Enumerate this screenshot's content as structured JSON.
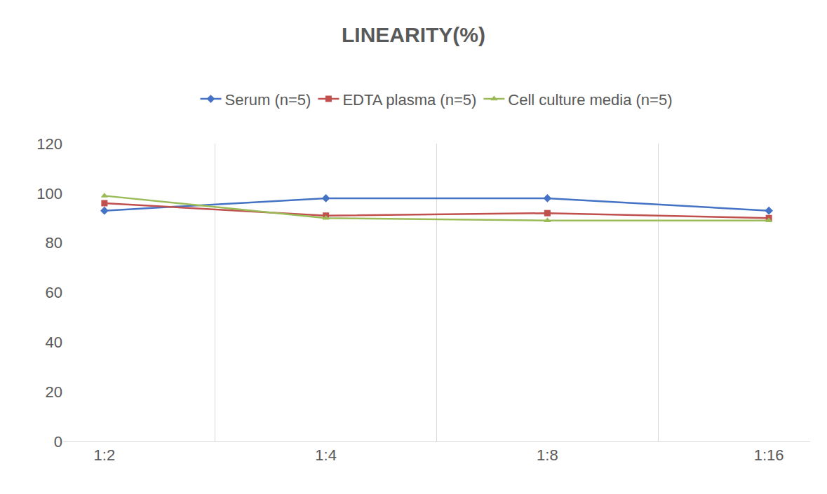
{
  "chart_data": {
    "type": "line",
    "title": "LINEARITY(%)",
    "categories": [
      "1:2",
      "1:4",
      "1:8",
      "1:16"
    ],
    "series": [
      {
        "name": "Serum (n=5)",
        "color": "#4472c4",
        "marker": "diamond",
        "values": [
          93,
          98,
          98,
          93
        ]
      },
      {
        "name": "EDTA plasma (n=5)",
        "color": "#c0504d",
        "marker": "square",
        "values": [
          96,
          91,
          92,
          90
        ]
      },
      {
        "name": "Cell culture media (n=5)",
        "color": "#9bbb59",
        "marker": "triangle-up",
        "values": [
          99,
          90,
          89,
          89
        ]
      }
    ],
    "ylim": [
      0,
      120
    ],
    "yticks": [
      0,
      20,
      40,
      60,
      80,
      100,
      120
    ],
    "grid": true,
    "legend": "top"
  }
}
